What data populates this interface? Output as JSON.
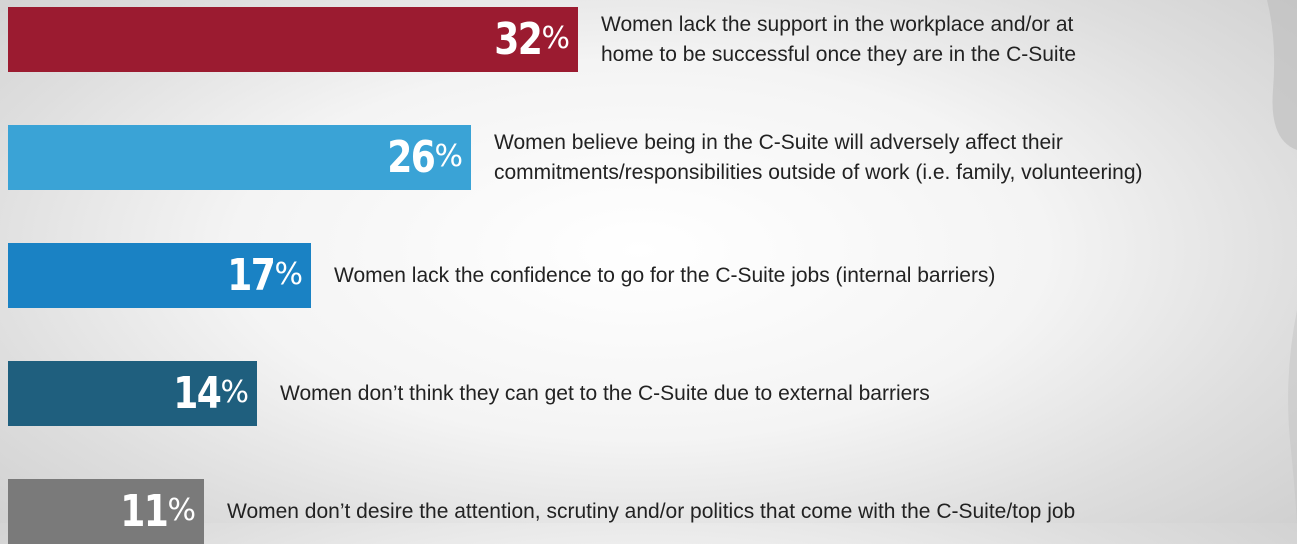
{
  "chart_data": {
    "type": "bar",
    "orientation": "horizontal",
    "unit": "%",
    "categories": [
      "Women lack the support in the workplace and/or at home to be successful once they are in the C-Suite",
      "Women believe being in the C-Suite will adversely affect their commitments/responsibilities outside of work (i.e. family, volunteering)",
      "Women lack the confidence to go for the C-Suite jobs (internal barriers)",
      "Women don’t think they can get to the C-Suite due to external barriers",
      "Women don’t desire the attention, scrutiny and/or politics that come with the C-Suite/top job"
    ],
    "values": [
      32,
      26,
      17,
      14,
      11
    ],
    "colors": [
      "#9b1b30",
      "#3aa3d6",
      "#1a82c4",
      "#1f5f7e",
      "#7a7a7a"
    ],
    "xlim": [
      0,
      32
    ]
  },
  "rows": [
    {
      "num": "32",
      "pct": "%",
      "desc_lines": [
        "Women lack the support in the workplace and/or at",
        "home to be successful once they are in the C-Suite"
      ]
    },
    {
      "num": "26",
      "pct": "%",
      "desc_lines": [
        "Women believe being in the C-Suite will adversely affect their",
        "commitments/responsibilities outside of work (i.e. family, volunteering)"
      ]
    },
    {
      "num": "17",
      "pct": "%",
      "desc_lines": [
        "Women lack the confidence to go for the C-Suite jobs (internal barriers)"
      ]
    },
    {
      "num": "14",
      "pct": "%",
      "desc_lines": [
        "Women don’t think they can get to the C-Suite due to external barriers"
      ]
    },
    {
      "num": "11",
      "pct": "%",
      "desc_lines": [
        "Women don’t desire the attention, scrutiny and/or politics that come with the C-Suite/top job"
      ]
    }
  ]
}
